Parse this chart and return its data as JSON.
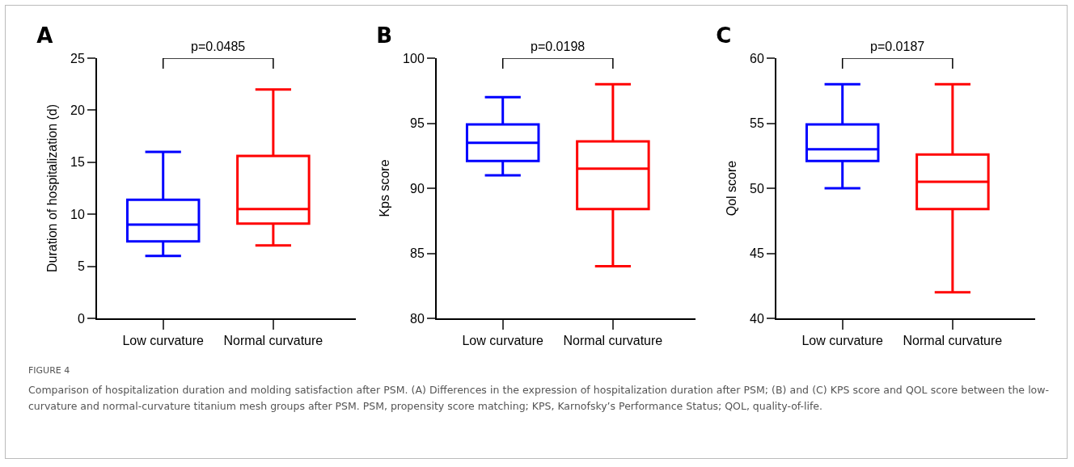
{
  "chart_data": [
    {
      "type": "box",
      "title": "A",
      "ylabel": "Duration of hospitalization (d)",
      "categories": [
        "Low curvature",
        "Normal curvature"
      ],
      "colors": [
        "#0000ff",
        "#ff0000"
      ],
      "boxes": [
        {
          "low": 6,
          "q1": 7.4,
          "median": 9,
          "q3": 11.4,
          "high": 16
        },
        {
          "low": 7,
          "q1": 9.1,
          "median": 10.5,
          "q3": 15.6,
          "high": 22
        }
      ],
      "ylim": [
        0,
        25
      ],
      "yticks": [
        0,
        5,
        10,
        15,
        20,
        25
      ],
      "grid": false,
      "annotations": [
        "p=0.0485",
        "FIGURE 4",
        "Comparison of hospitalization duration and molding satisfaction after PSM. (A) Differences in the expression of hospitalization duration after PSM; (B) and (C) KPS score and QOL score between the low-curvature and normal-curvature titanium mesh groups after PSM. PSM, propensity score matching; KPS, Karnofsky’s Performance Status; QOL, quality-of-life."
      ]
    },
    {
      "type": "box",
      "title": "B",
      "ylabel": "Kps score",
      "categories": [
        "Low curvature",
        "Normal curvature"
      ],
      "colors": [
        "#0000ff",
        "#ff0000"
      ],
      "boxes": [
        {
          "low": 91,
          "q1": 92.1,
          "median": 93.5,
          "q3": 94.9,
          "high": 97
        },
        {
          "low": 84,
          "q1": 88.4,
          "median": 91.5,
          "q3": 93.6,
          "high": 98
        }
      ],
      "ylim": [
        80,
        100
      ],
      "yticks": [
        80,
        85,
        90,
        95,
        100
      ],
      "grid": false,
      "annotations": [
        "p=0.0198"
      ]
    },
    {
      "type": "box",
      "title": "C",
      "ylabel": "Qol score",
      "categories": [
        "Low curvature",
        "Normal curvature"
      ],
      "colors": [
        "#0000ff",
        "#ff0000"
      ],
      "boxes": [
        {
          "low": 50,
          "q1": 52.1,
          "median": 53,
          "q3": 54.9,
          "high": 58
        },
        {
          "low": 42,
          "q1": 48.4,
          "median": 50.5,
          "q3": 52.6,
          "high": 58
        }
      ],
      "ylim": [
        40,
        60
      ],
      "yticks": [
        40,
        45,
        50,
        55,
        60
      ],
      "grid": false,
      "annotations": [
        "p=0.0187"
      ]
    }
  ]
}
